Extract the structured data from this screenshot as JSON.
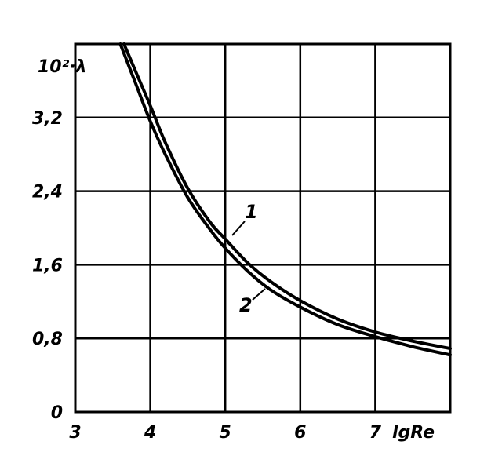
{
  "chart_data": {
    "type": "line",
    "title": "",
    "xlabel": "lgRe",
    "ylabel": "10²·λ",
    "xlim": [
      3,
      8
    ],
    "ylim": [
      0,
      4.0
    ],
    "grid": true,
    "x_ticks": [
      {
        "value": 3,
        "label": "3"
      },
      {
        "value": 4,
        "label": "4"
      },
      {
        "value": 5,
        "label": "5"
      },
      {
        "value": 6,
        "label": "6"
      },
      {
        "value": 7,
        "label": "7"
      }
    ],
    "y_ticks": [
      {
        "value": 0,
        "label": "0"
      },
      {
        "value": 0.8,
        "label": "0,8"
      },
      {
        "value": 1.6,
        "label": "1,6"
      },
      {
        "value": 2.4,
        "label": "2,4"
      },
      {
        "value": 3.2,
        "label": "3,2"
      }
    ],
    "series": [
      {
        "label": "1",
        "x": [
          3.65,
          3.8,
          4.0,
          4.2,
          4.5,
          4.8,
          5.0,
          5.3,
          5.6,
          6.0,
          6.5,
          7.0,
          7.5,
          8.0
        ],
        "y": [
          4.0,
          3.71,
          3.33,
          2.93,
          2.43,
          2.06,
          1.88,
          1.62,
          1.42,
          1.21,
          1.01,
          0.87,
          0.77,
          0.69
        ]
      },
      {
        "label": "2",
        "x": [
          3.6,
          3.8,
          4.0,
          4.2,
          4.5,
          4.8,
          5.0,
          5.3,
          5.6,
          6.0,
          6.5,
          7.0,
          7.5,
          8.0
        ],
        "y": [
          4.0,
          3.58,
          3.16,
          2.8,
          2.33,
          1.98,
          1.78,
          1.53,
          1.33,
          1.14,
          0.95,
          0.82,
          0.71,
          0.62
        ]
      }
    ]
  }
}
